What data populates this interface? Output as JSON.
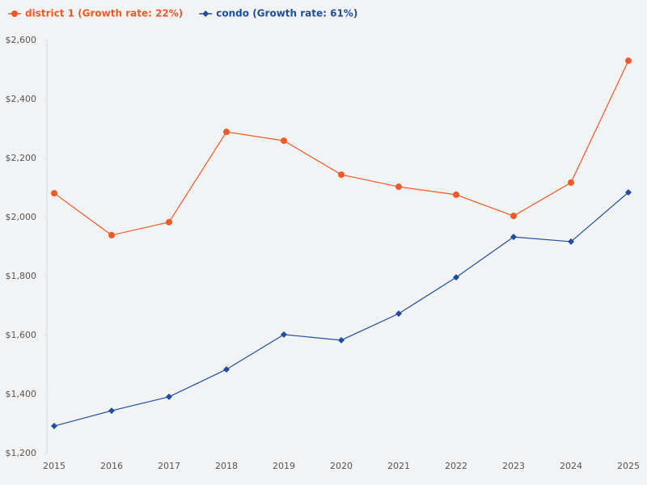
{
  "chart_data": {
    "type": "line",
    "categories": [
      "2015",
      "2016",
      "2017",
      "2018",
      "2019",
      "2020",
      "2021",
      "2022",
      "2023",
      "2024",
      "2025"
    ],
    "series": [
      {
        "name": "district 1 (Growth rate: 22%)",
        "color": "#f05a28",
        "marker": "circle",
        "values": [
          2082,
          1940,
          1984,
          2290,
          2260,
          2145,
          2104,
          2077,
          2005,
          2118,
          2531
        ]
      },
      {
        "name": "condo (Growth rate: 61%)",
        "color": "#1f4e9c",
        "marker": "diamond",
        "values": [
          1293,
          1345,
          1392,
          1485,
          1603,
          1584,
          1674,
          1797,
          1934,
          1918,
          2085
        ]
      }
    ],
    "ylim": [
      1200,
      2600
    ],
    "yticks": [
      {
        "value": 1200,
        "label": "$1,200"
      },
      {
        "value": 1400,
        "label": "$1,400"
      },
      {
        "value": 1600,
        "label": "$1,600"
      },
      {
        "value": 1800,
        "label": "$1,800"
      },
      {
        "value": 2000,
        "label": "$2,000"
      },
      {
        "value": 2200,
        "label": "$2,200"
      },
      {
        "value": 2400,
        "label": "$2,400"
      },
      {
        "value": 2600,
        "label": "$2,600"
      }
    ],
    "grid": false,
    "legend": "top-left"
  }
}
